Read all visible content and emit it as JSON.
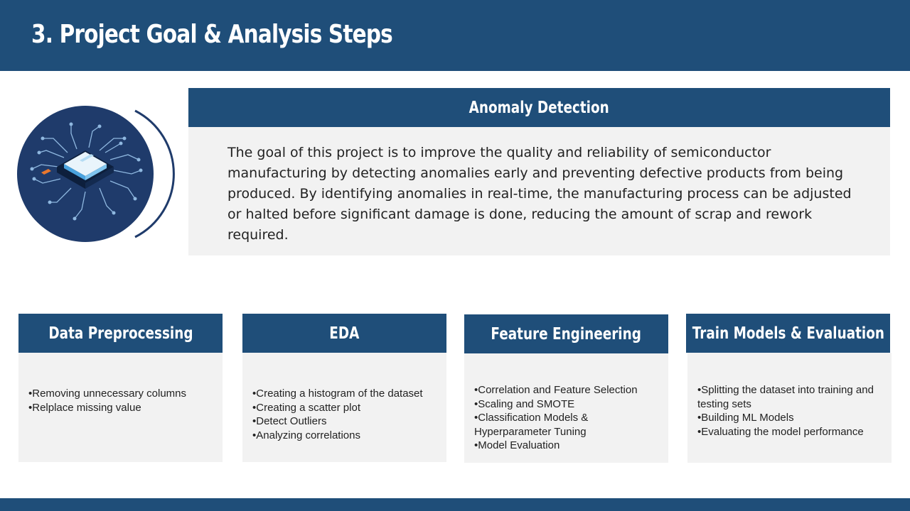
{
  "slide": {
    "title": "3. Project Goal & Analysis Steps"
  },
  "goal": {
    "heading": "Anomaly Detection",
    "text": "The goal of this project is to improve the quality and reliability of semiconductor manufacturing by detecting anomalies early and preventing defective products from being produced. By identifying anomalies in real-time, the manufacturing process can be adjusted or halted before significant damage is done, reducing the amount of scrap and rework required."
  },
  "hero_icon": "semiconductor-chip-icon",
  "steps": [
    {
      "heading": "Data Preprocessing",
      "items": [
        "•Removing unnecessary columns",
        "•Relplace missing value"
      ]
    },
    {
      "heading": "EDA",
      "items": [
        "•Creating a histogram of the dataset",
        "•Creating a scatter plot",
        "•Detect Outliers",
        "•Analyzing correlations"
      ]
    },
    {
      "heading": "Feature Engineering",
      "items": [
        "•Correlation and Feature Selection",
        "•Scaling and SMOTE",
        "•Classification Models & Hyperparameter Tuning",
        "•Model Evaluation"
      ]
    },
    {
      "heading": "Train Models & Evaluation",
      "items": [
        "•Splitting the dataset into training and testing sets",
        "•Building ML Models",
        "•Evaluating the model performance"
      ]
    }
  ],
  "colors": {
    "primary": "#1f4e79",
    "panel": "#f2f2f2",
    "text": "#222222",
    "chip_circle": "#1f3b6b",
    "chip_accent": "#e8772e"
  }
}
